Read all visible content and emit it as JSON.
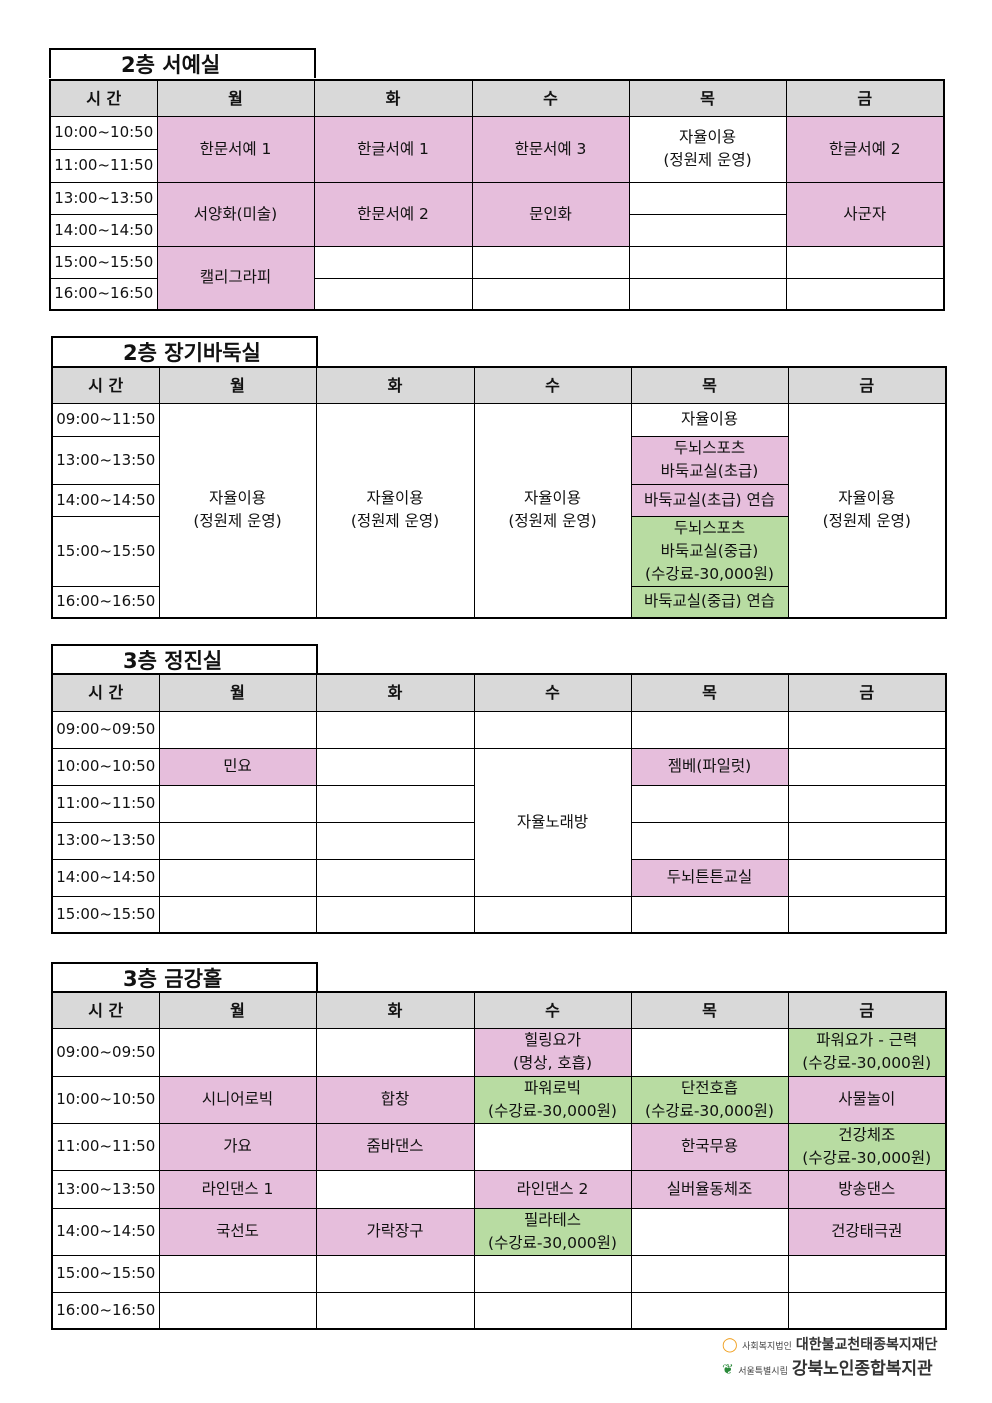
{
  "colors": {
    "pink": "#e6bedc",
    "green": "#b8dca2",
    "header": "#d9d9d9"
  },
  "sections": [
    {
      "title": "2층 서예실",
      "headers": [
        "시 간",
        "월",
        "화",
        "수",
        "목",
        "금"
      ],
      "rows": [
        {
          "time": "10:00~10:50",
          "cells": [
            {
              "text": "한문서예 1",
              "rowspan": 2,
              "color": "pink"
            },
            {
              "text": "한글서예 1",
              "rowspan": 2,
              "color": "pink"
            },
            {
              "text": "한문서예 3",
              "rowspan": 2,
              "color": "pink"
            },
            {
              "text": "자율이용\n(정원제 운영)",
              "rowspan": 2,
              "color": "white"
            },
            {
              "text": "한글서예 2",
              "rowspan": 2,
              "color": "pink"
            }
          ]
        },
        {
          "time": "11:00~11:50",
          "cells": []
        },
        {
          "time": "13:00~13:50",
          "cells": [
            {
              "text": "서양화(미술)",
              "rowspan": 2,
              "color": "pink"
            },
            {
              "text": "한문서예 2",
              "rowspan": 2,
              "color": "pink"
            },
            {
              "text": "문인화",
              "rowspan": 2,
              "color": "pink"
            },
            {
              "text": "",
              "rowspan": 1,
              "color": "white"
            },
            {
              "text": "사군자",
              "rowspan": 2,
              "color": "pink"
            }
          ]
        },
        {
          "time": "14:00~14:50",
          "cells": [
            {
              "text": "",
              "rowspan": 1,
              "color": "white"
            }
          ]
        },
        {
          "time": "15:00~15:50",
          "cells": [
            {
              "text": "캘리그라피",
              "rowspan": 2,
              "color": "pink"
            },
            {
              "text": "",
              "rowspan": 1,
              "color": "white"
            },
            {
              "text": "",
              "rowspan": 1,
              "color": "white"
            },
            {
              "text": "",
              "rowspan": 1,
              "color": "white"
            },
            {
              "text": "",
              "rowspan": 1,
              "color": "white"
            }
          ]
        },
        {
          "time": "16:00~16:50",
          "cells": [
            {
              "text": "",
              "rowspan": 1,
              "color": "white"
            },
            {
              "text": "",
              "rowspan": 1,
              "color": "white"
            },
            {
              "text": "",
              "rowspan": 1,
              "color": "white"
            },
            {
              "text": "",
              "rowspan": 1,
              "color": "white"
            }
          ]
        }
      ]
    },
    {
      "title": "2층 장기바둑실",
      "headers": [
        "시 간",
        "월",
        "화",
        "수",
        "목",
        "금"
      ],
      "rows": [
        {
          "time": "09:00~11:50",
          "cells": [
            {
              "text": "자율이용\n(정원제 운영)",
              "rowspan": 5,
              "color": "white"
            },
            {
              "text": "자율이용\n(정원제 운영)",
              "rowspan": 5,
              "color": "white"
            },
            {
              "text": "자율이용\n(정원제 운영)",
              "rowspan": 5,
              "color": "white"
            },
            {
              "text": "자율이용",
              "rowspan": 1,
              "color": "white"
            },
            {
              "text": "자율이용\n(정원제 운영)",
              "rowspan": 5,
              "color": "white"
            }
          ]
        },
        {
          "time": "13:00~13:50",
          "cells": [
            {
              "text": "두뇌스포츠\n바둑교실(초급)",
              "rowspan": 1,
              "color": "pink"
            }
          ]
        },
        {
          "time": "14:00~14:50",
          "cells": [
            {
              "text": "바둑교실(초급) 연습",
              "rowspan": 1,
              "color": "pink"
            }
          ]
        },
        {
          "time": "15:00~15:50",
          "cells": [
            {
              "text": "두뇌스포츠\n바둑교실(중급)\n(수강료-30,000원)",
              "rowspan": 1,
              "color": "green"
            }
          ]
        },
        {
          "time": "16:00~16:50",
          "cells": [
            {
              "text": "바둑교실(중급) 연습",
              "rowspan": 1,
              "color": "green"
            }
          ]
        }
      ]
    },
    {
      "title": "3층 정진실",
      "headers": [
        "시 간",
        "월",
        "화",
        "수",
        "목",
        "금"
      ],
      "rows": [
        {
          "time": "09:00~09:50",
          "cells": [
            {
              "text": "",
              "rowspan": 1,
              "color": "white"
            },
            {
              "text": "",
              "rowspan": 1,
              "color": "white"
            },
            {
              "text": "",
              "rowspan": 1,
              "color": "white"
            },
            {
              "text": "",
              "rowspan": 1,
              "color": "white"
            },
            {
              "text": "",
              "rowspan": 1,
              "color": "white"
            }
          ]
        },
        {
          "time": "10:00~10:50",
          "cells": [
            {
              "text": "민요",
              "rowspan": 1,
              "color": "pink"
            },
            {
              "text": "",
              "rowspan": 1,
              "color": "white"
            },
            {
              "text": "자율노래방",
              "rowspan": 4,
              "color": "white"
            },
            {
              "text": "젬베(파일럿)",
              "rowspan": 1,
              "color": "pink"
            },
            {
              "text": "",
              "rowspan": 1,
              "color": "white"
            }
          ]
        },
        {
          "time": "11:00~11:50",
          "cells": [
            {
              "text": "",
              "rowspan": 1,
              "color": "white"
            },
            {
              "text": "",
              "rowspan": 1,
              "color": "white"
            },
            {
              "text": "",
              "rowspan": 1,
              "color": "white"
            },
            {
              "text": "",
              "rowspan": 1,
              "color": "white"
            }
          ]
        },
        {
          "time": "13:00~13:50",
          "cells": [
            {
              "text": "",
              "rowspan": 1,
              "color": "white"
            },
            {
              "text": "",
              "rowspan": 1,
              "color": "white"
            },
            {
              "text": "",
              "rowspan": 1,
              "color": "white"
            },
            {
              "text": "",
              "rowspan": 1,
              "color": "white"
            }
          ]
        },
        {
          "time": "14:00~14:50",
          "cells": [
            {
              "text": "",
              "rowspan": 1,
              "color": "white"
            },
            {
              "text": "",
              "rowspan": 1,
              "color": "white"
            },
            {
              "text": "두뇌튼튼교실",
              "rowspan": 1,
              "color": "pink"
            },
            {
              "text": "",
              "rowspan": 1,
              "color": "white"
            }
          ]
        },
        {
          "time": "15:00~15:50",
          "cells": [
            {
              "text": "",
              "rowspan": 1,
              "color": "white"
            },
            {
              "text": "",
              "rowspan": 1,
              "color": "white"
            },
            {
              "text": "",
              "rowspan": 1,
              "color": "white"
            },
            {
              "text": "",
              "rowspan": 1,
              "color": "white"
            },
            {
              "text": "",
              "rowspan": 1,
              "color": "white"
            }
          ]
        }
      ]
    },
    {
      "title": "3층 금강홀",
      "headers": [
        "시 간",
        "월",
        "화",
        "수",
        "목",
        "금"
      ],
      "rows": [
        {
          "time": "09:00~09:50",
          "cells": [
            {
              "text": "",
              "rowspan": 1,
              "color": "white"
            },
            {
              "text": "",
              "rowspan": 1,
              "color": "white"
            },
            {
              "text": "힐링요가\n(명상, 호흡)",
              "rowspan": 1,
              "color": "pink"
            },
            {
              "text": "",
              "rowspan": 1,
              "color": "white"
            },
            {
              "text": "파워요가 - 근력\n(수강료-30,000원)",
              "rowspan": 1,
              "color": "green"
            }
          ]
        },
        {
          "time": "10:00~10:50",
          "cells": [
            {
              "text": "시니어로빅",
              "rowspan": 1,
              "color": "pink"
            },
            {
              "text": "합창",
              "rowspan": 1,
              "color": "pink"
            },
            {
              "text": "파워로빅\n(수강료-30,000원)",
              "rowspan": 1,
              "color": "green"
            },
            {
              "text": "단전호흡\n(수강료-30,000원)",
              "rowspan": 1,
              "color": "green"
            },
            {
              "text": "사물놀이",
              "rowspan": 1,
              "color": "pink"
            }
          ]
        },
        {
          "time": "11:00~11:50",
          "cells": [
            {
              "text": "가요",
              "rowspan": 1,
              "color": "pink"
            },
            {
              "text": "줌바댄스",
              "rowspan": 1,
              "color": "pink"
            },
            {
              "text": "",
              "rowspan": 1,
              "color": "white"
            },
            {
              "text": "한국무용",
              "rowspan": 1,
              "color": "pink"
            },
            {
              "text": "건강체조\n(수강료-30,000원)",
              "rowspan": 1,
              "color": "green"
            }
          ]
        },
        {
          "time": "13:00~13:50",
          "cells": [
            {
              "text": "라인댄스 1",
              "rowspan": 1,
              "color": "pink"
            },
            {
              "text": "",
              "rowspan": 1,
              "color": "white"
            },
            {
              "text": "라인댄스 2",
              "rowspan": 1,
              "color": "pink"
            },
            {
              "text": "실버율동체조",
              "rowspan": 1,
              "color": "pink"
            },
            {
              "text": "방송댄스",
              "rowspan": 1,
              "color": "pink"
            }
          ]
        },
        {
          "time": "14:00~14:50",
          "cells": [
            {
              "text": "국선도",
              "rowspan": 1,
              "color": "pink"
            },
            {
              "text": "가락장구",
              "rowspan": 1,
              "color": "pink"
            },
            {
              "text": "필라테스\n(수강료-30,000원)",
              "rowspan": 1,
              "color": "green"
            },
            {
              "text": "",
              "rowspan": 1,
              "color": "white"
            },
            {
              "text": "건강태극권",
              "rowspan": 1,
              "color": "pink"
            }
          ]
        },
        {
          "time": "15:00~15:50",
          "cells": [
            {
              "text": "",
              "rowspan": 1,
              "color": "white"
            },
            {
              "text": "",
              "rowspan": 1,
              "color": "white"
            },
            {
              "text": "",
              "rowspan": 1,
              "color": "white"
            },
            {
              "text": "",
              "rowspan": 1,
              "color": "white"
            },
            {
              "text": "",
              "rowspan": 1,
              "color": "white"
            }
          ]
        },
        {
          "time": "16:00~16:50",
          "cells": [
            {
              "text": "",
              "rowspan": 1,
              "color": "white"
            },
            {
              "text": "",
              "rowspan": 1,
              "color": "white"
            },
            {
              "text": "",
              "rowspan": 1,
              "color": "white"
            },
            {
              "text": "",
              "rowspan": 1,
              "color": "white"
            },
            {
              "text": "",
              "rowspan": 1,
              "color": "white"
            }
          ]
        }
      ]
    }
  ],
  "footer": {
    "line1_small": "사회복지법인",
    "line1_big": "대한불교천태종복지재단",
    "line2_small": "서울특별시립",
    "line2_big": "강북노인종합복지관"
  }
}
